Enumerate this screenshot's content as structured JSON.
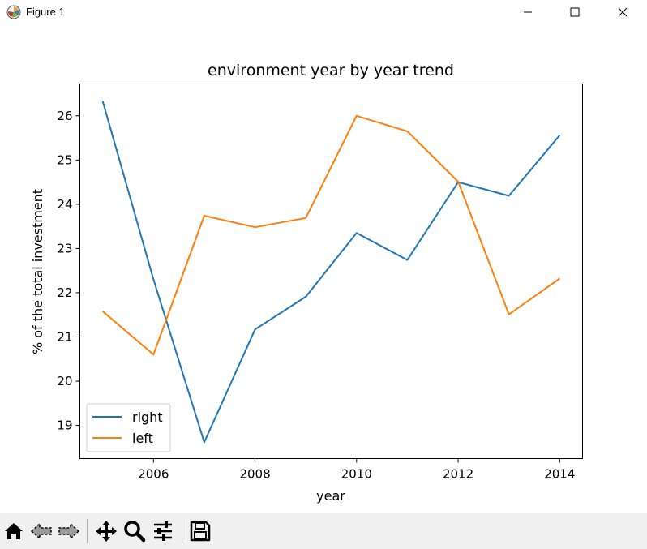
{
  "window": {
    "title": "Figure 1",
    "icons": [
      "matplotlib-icon",
      "minimize-icon",
      "maximize-icon",
      "close-icon"
    ]
  },
  "toolbar": {
    "icons": [
      "home-icon",
      "back-icon",
      "forward-icon",
      "pan-icon",
      "zoom-icon",
      "configure-subplots-icon",
      "save-icon"
    ]
  },
  "chart_data": {
    "type": "line",
    "title": "environment year by year trend",
    "xlabel": "year",
    "ylabel": "% of the total investment",
    "x": [
      2005,
      2006,
      2007,
      2008,
      2009,
      2010,
      2011,
      2012,
      2013,
      2014
    ],
    "xticks": [
      2006,
      2008,
      2010,
      2012,
      2014
    ],
    "yticks": [
      19,
      20,
      21,
      22,
      23,
      24,
      25,
      26
    ],
    "xlim": [
      2004.55,
      2014.45
    ],
    "ylim": [
      18.25,
      26.72
    ],
    "grid": false,
    "legend": "lower-left",
    "series": [
      {
        "name": "right",
        "color": "#1f77b4",
        "values": [
          26.33,
          22.3,
          18.62,
          21.17,
          21.91,
          23.35,
          22.74,
          24.5,
          24.19,
          25.56
        ]
      },
      {
        "name": "left",
        "color": "#ff7f0e",
        "values": [
          21.58,
          20.6,
          23.74,
          23.48,
          23.69,
          26.0,
          25.65,
          24.51,
          21.51,
          22.32
        ]
      }
    ]
  }
}
